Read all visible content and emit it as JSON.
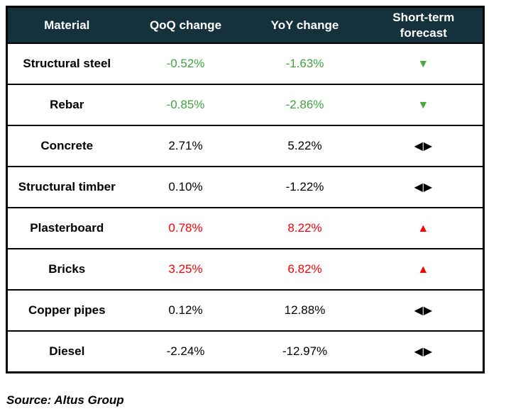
{
  "colors": {
    "header_bg": "#14313c",
    "header_text": "#ffffff",
    "border": "#000000",
    "green": "#3fa43f",
    "red": "#fb0000",
    "black": "#000000"
  },
  "chart_data": {
    "type": "table",
    "title": "",
    "columns": [
      "Material",
      "QoQ change",
      "YoY change",
      "Short-term forecast"
    ],
    "rows": [
      {
        "material": "Structural steel",
        "qoq": "-0.52%",
        "yoy": "-1.63%",
        "trend": "down",
        "value_color": "#3fa43f"
      },
      {
        "material": "Rebar",
        "qoq": "-0.85%",
        "yoy": "-2.86%",
        "trend": "down",
        "value_color": "#3fa43f"
      },
      {
        "material": "Concrete",
        "qoq": "2.71%",
        "yoy": "5.22%",
        "trend": "neutral",
        "value_color": "#000000"
      },
      {
        "material": "Structural timber",
        "qoq": "0.10%",
        "yoy": "-1.22%",
        "trend": "neutral",
        "value_color": "#000000"
      },
      {
        "material": "Plasterboard",
        "qoq": "0.78%",
        "yoy": "8.22%",
        "trend": "up",
        "value_color": "#fb0000"
      },
      {
        "material": "Bricks",
        "qoq": "3.25%",
        "yoy": "6.82%",
        "trend": "up",
        "value_color": "#fb0000"
      },
      {
        "material": "Copper pipes",
        "qoq": "0.12%",
        "yoy": "12.88%",
        "trend": "neutral",
        "value_color": "#000000"
      },
      {
        "material": "Diesel",
        "qoq": "-2.24%",
        "yoy": "-12.97%",
        "trend": "neutral",
        "value_color": "#000000"
      }
    ],
    "source": "Source: Altus Group"
  },
  "table": {
    "columns": [
      "Material",
      "QoQ change",
      "YoY change",
      "Short-term forecast"
    ],
    "rows": [
      {
        "material": "Structural steel",
        "qoq": "-0.52%",
        "yoy": "-1.63%",
        "trend": "down",
        "value_color": "#3fa43f"
      },
      {
        "material": "Rebar",
        "qoq": "-0.85%",
        "yoy": "-2.86%",
        "trend": "down",
        "value_color": "#3fa43f"
      },
      {
        "material": "Concrete",
        "qoq": "2.71%",
        "yoy": "5.22%",
        "trend": "neutral",
        "value_color": "#000000"
      },
      {
        "material": "Structural timber",
        "qoq": "0.10%",
        "yoy": "-1.22%",
        "trend": "neutral",
        "value_color": "#000000"
      },
      {
        "material": "Plasterboard",
        "qoq": "0.78%",
        "yoy": "8.22%",
        "trend": "up",
        "value_color": "#fb0000"
      },
      {
        "material": "Bricks",
        "qoq": "3.25%",
        "yoy": "6.82%",
        "trend": "up",
        "value_color": "#fb0000"
      },
      {
        "material": "Copper pipes",
        "qoq": "0.12%",
        "yoy": "12.88%",
        "trend": "neutral",
        "value_color": "#000000"
      },
      {
        "material": "Diesel",
        "qoq": "-2.24%",
        "yoy": "-12.97%",
        "trend": "neutral",
        "value_color": "#000000"
      }
    ]
  },
  "icons": {
    "down": {
      "glyph": "▼",
      "color": "#4ca63e",
      "name": "triangle-down-icon"
    },
    "up": {
      "glyph": "▲",
      "color": "#fb0000",
      "name": "triangle-up-icon"
    },
    "neutral": {
      "glyph": "◀▶",
      "color": "#000000",
      "name": "triangle-left-right-icon"
    }
  },
  "source": "Source: Altus Group"
}
